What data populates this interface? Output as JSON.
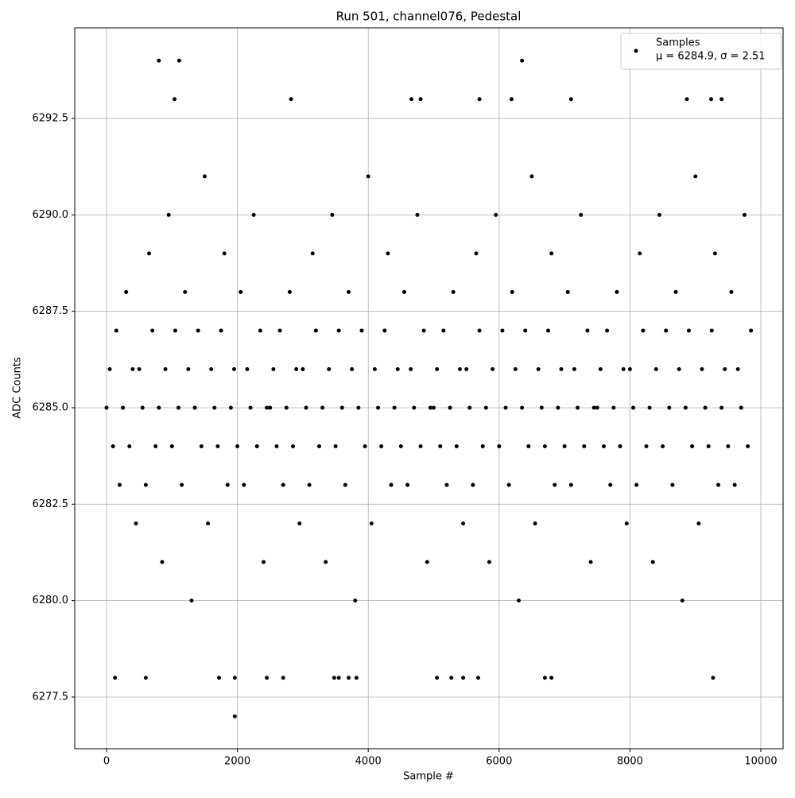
{
  "chart_data": {
    "type": "scatter",
    "title": "Run 501, channel076, Pedestal",
    "x_label": "Sample #",
    "y_label": "ADC Counts",
    "xlim": [
      -486,
      10340
    ],
    "ylim": [
      6276.16,
      6294.85
    ],
    "xticks": [
      0,
      2000,
      4000,
      6000,
      8000,
      10000
    ],
    "yticks": [
      6277.5,
      {
        "value": 6280,
        "label": "6280.0"
      },
      6282.5,
      {
        "value": 6285,
        "label": "6285.0"
      },
      6287.5,
      {
        "value": 6290,
        "label": "6290.0"
      },
      6292.5
    ],
    "grid": true,
    "legend": "upper right",
    "legend_subtitle": "μ = 6284.9, σ = 2.51",
    "series": [
      {
        "name": "Samples",
        "color": "#000000",
        "x": [
          0,
          50,
          100,
          150,
          200,
          250,
          300,
          350,
          400,
          450,
          500,
          550,
          600,
          650,
          700,
          750,
          800,
          850,
          900,
          950,
          1000,
          1050,
          1100,
          1150,
          1200,
          1250,
          1300,
          1350,
          1400,
          1450,
          1500,
          1550,
          1600,
          1650,
          1700,
          1750,
          1800,
          1850,
          1900,
          1950,
          2000,
          2050,
          2100,
          2150,
          2200,
          2250,
          2300,
          2350,
          2400,
          2450,
          2500,
          2550,
          2600,
          2650,
          2700,
          2750,
          2800,
          2850,
          2900,
          2950,
          3000,
          3050,
          3100,
          3150,
          3200,
          3250,
          3300,
          3350,
          3400,
          3450,
          3500,
          3550,
          3600,
          3650,
          3700,
          3750,
          3800,
          3850,
          3900,
          3950,
          4000,
          4050,
          4100,
          4150,
          4200,
          4250,
          4300,
          4350,
          4400,
          4450,
          4500,
          4550,
          4600,
          4650,
          4700,
          4750,
          4800,
          4850,
          4900,
          4950,
          5000,
          5050,
          5100,
          5150,
          5200,
          5250,
          5300,
          5350,
          5400,
          5450,
          5500,
          5550,
          5600,
          5650,
          5700,
          5750,
          5800,
          5850,
          5900,
          5950,
          6000,
          6050,
          6100,
          6150,
          6200,
          6250,
          6300,
          6350,
          6400,
          6450,
          6500,
          6550,
          6600,
          6650,
          6700,
          6750,
          6800,
          6850,
          6900,
          6950,
          7000,
          7050,
          7100,
          7150,
          7200,
          7250,
          7300,
          7350,
          7400,
          7450,
          7500,
          7550,
          7600,
          7650,
          7700,
          7750,
          7800,
          7850,
          7900,
          7950,
          8000,
          8050,
          8100,
          8150,
          8200,
          8250,
          8300,
          8350,
          8400,
          8450,
          8500,
          8550,
          8600,
          8650,
          8700,
          8750,
          8800,
          8850,
          8900,
          8950,
          9000,
          9050,
          9100,
          9150,
          9200,
          9250,
          9300,
          9350,
          9400,
          9450,
          9500,
          9550,
          9600,
          9650,
          9700,
          9750,
          9800,
          9850,
          1960,
          800,
          1110,
          6350,
          1040,
          2820,
          4660,
          4800,
          5700,
          6190,
          7100,
          8870,
          9240,
          9400,
          130,
          600,
          1720,
          1960,
          2450,
          2700,
          3480,
          3550,
          3700,
          3820,
          5050,
          5270,
          5450,
          5680,
          6700,
          6800,
          9270
        ],
        "values": [
          6285,
          6286,
          6284,
          6287,
          6283,
          6285,
          6288,
          6284,
          6286,
          6282,
          6286,
          6285,
          6283,
          6289,
          6287,
          6284,
          6285,
          6281,
          6286,
          6290,
          6284,
          6287,
          6285,
          6283,
          6288,
          6286,
          6280,
          6285,
          6287,
          6284,
          6291,
          6282,
          6286,
          6285,
          6284,
          6287,
          6289,
          6283,
          6285,
          6286,
          6284,
          6288,
          6283,
          6286,
          6285,
          6290,
          6284,
          6287,
          6281,
          6285,
          6285,
          6286,
          6284,
          6287,
          6283,
          6285,
          6288,
          6284,
          6286,
          6282,
          6286,
          6285,
          6283,
          6289,
          6287,
          6284,
          6285,
          6281,
          6286,
          6290,
          6284,
          6287,
          6285,
          6283,
          6288,
          6286,
          6280,
          6285,
          6287,
          6284,
          6291,
          6282,
          6286,
          6285,
          6284,
          6287,
          6289,
          6283,
          6285,
          6286,
          6284,
          6288,
          6283,
          6286,
          6285,
          6290,
          6284,
          6287,
          6281,
          6285,
          6285,
          6286,
          6284,
          6287,
          6283,
          6285,
          6288,
          6284,
          6286,
          6282,
          6286,
          6285,
          6283,
          6289,
          6287,
          6284,
          6285,
          6281,
          6286,
          6290,
          6284,
          6287,
          6285,
          6283,
          6288,
          6286,
          6280,
          6285,
          6287,
          6284,
          6291,
          6282,
          6286,
          6285,
          6284,
          6287,
          6289,
          6283,
          6285,
          6286,
          6284,
          6288,
          6283,
          6286,
          6285,
          6290,
          6284,
          6287,
          6281,
          6285,
          6285,
          6286,
          6284,
          6287,
          6283,
          6285,
          6288,
          6284,
          6286,
          6282,
          6286,
          6285,
          6283,
          6289,
          6287,
          6284,
          6285,
          6281,
          6286,
          6290,
          6284,
          6287,
          6285,
          6283,
          6288,
          6286,
          6280,
          6285,
          6287,
          6284,
          6291,
          6282,
          6286,
          6285,
          6284,
          6287,
          6289,
          6283,
          6285,
          6286,
          6284,
          6288,
          6283,
          6286,
          6285,
          6290,
          6284,
          6287,
          6277,
          6294,
          6294,
          6294,
          6293,
          6293,
          6293,
          6293,
          6293,
          6293,
          6293,
          6293,
          6293,
          6293,
          6278,
          6278,
          6278,
          6278,
          6278,
          6278,
          6278,
          6278,
          6278,
          6278,
          6278,
          6278,
          6278,
          6278,
          6278,
          6278,
          6278
        ]
      }
    ]
  }
}
